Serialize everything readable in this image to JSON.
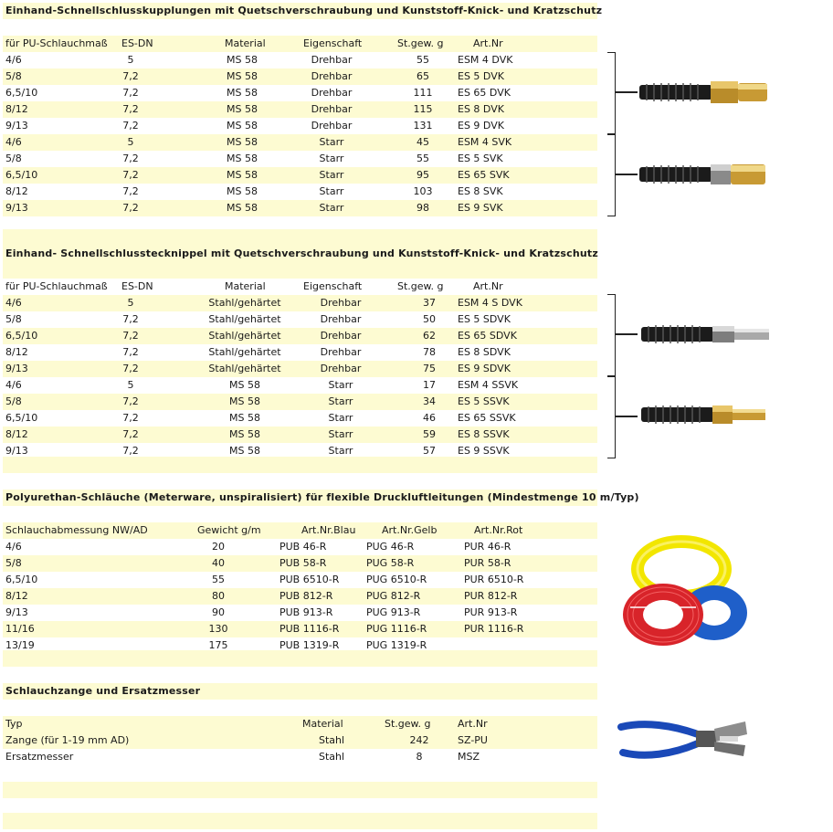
{
  "sections": [
    {
      "title": "Einhand-Schnellschlusskupplungen mit Quetschverschraubung und Kunststoff-Knick- und Kratzschutz",
      "headers": [
        "für PU-Schlauchmaß",
        "ES-DN",
        "Material",
        "Eigenschaft",
        "St.gew. g",
        "Art.Nr"
      ],
      "rows": [
        [
          "4/6",
          "5",
          "MS 58",
          "Drehbar",
          "55",
          "ESM 4 DVK"
        ],
        [
          "5/8",
          "7,2",
          "MS 58",
          "Drehbar",
          "65",
          "ES 5 DVK"
        ],
        [
          "6,5/10",
          "7,2",
          "MS 58",
          "Drehbar",
          "111",
          "ES 65 DVK"
        ],
        [
          "8/12",
          "7,2",
          "MS 58",
          "Drehbar",
          "115",
          "ES 8 DVK"
        ],
        [
          "9/13",
          "7,2",
          "MS 58",
          "Drehbar",
          "131",
          "ES 9 DVK"
        ],
        [
          "4/6",
          "5",
          "MS 58",
          "Starr",
          "45",
          "ESM 4 SVK"
        ],
        [
          "5/8",
          "7,2",
          "MS 58",
          "Starr",
          "55",
          "ES 5 SVK"
        ],
        [
          "6,5/10",
          "7,2",
          "MS 58",
          "Starr",
          "95",
          "ES 65 SVK"
        ],
        [
          "8/12",
          "7,2",
          "MS 58",
          "Starr",
          "103",
          "ES 8 SVK"
        ],
        [
          "9/13",
          "7,2",
          "MS 58",
          "Starr",
          "98",
          "ES 9 SVK"
        ]
      ]
    },
    {
      "title": "Einhand- Schnellschlusstecknippel mit Quetschverschraubung und Kunststoff-Knick- und Kratzschutz",
      "headers": [
        "für PU-Schlauchmaß",
        "ES-DN",
        "Material",
        "Eigenschaft",
        "St.gew. g",
        "Art.Nr"
      ],
      "rows": [
        [
          "4/6",
          "5",
          "Stahl/gehärtet",
          "Drehbar",
          "37",
          "ESM 4 S DVK"
        ],
        [
          "5/8",
          "7,2",
          "Stahl/gehärtet",
          "Drehbar",
          "50",
          "ES 5 SDVK"
        ],
        [
          "6,5/10",
          "7,2",
          "Stahl/gehärtet",
          "Drehbar",
          "62",
          "ES 65 SDVK"
        ],
        [
          "8/12",
          "7,2",
          "Stahl/gehärtet",
          "Drehbar",
          "78",
          "ES 8 SDVK"
        ],
        [
          "9/13",
          "7,2",
          "Stahl/gehärtet",
          "Drehbar",
          "75",
          "ES 9 SDVK"
        ],
        [
          "4/6",
          "5",
          "MS 58",
          "Starr",
          "17",
          "ESM 4 SSVK"
        ],
        [
          "5/8",
          "7,2",
          "MS 58",
          "Starr",
          "34",
          "ES 5 SSVK"
        ],
        [
          "6,5/10",
          "7,2",
          "MS 58",
          "Starr",
          "46",
          "ES 65 SSVK"
        ],
        [
          "8/12",
          "7,2",
          "MS 58",
          "Starr",
          "59",
          "ES 8 SSVK"
        ],
        [
          "9/13",
          "7,2",
          "MS 58",
          "Starr",
          "57",
          "ES 9 SSVK"
        ]
      ]
    },
    {
      "title": "Polyurethan-Schläuche (Meterware, unspiralisiert) für  flexible Druckluftleitungen (Mindestmenge 10 m/Typ)",
      "headers": [
        "Schlauchabmessung NW/AD",
        "Gewicht g/m",
        "Art.Nr.Blau",
        "Art.Nr.Gelb",
        "Art.Nr.Rot"
      ],
      "rows": [
        [
          "4/6",
          "20",
          "PUB 46-R",
          "PUG 46-R",
          "PUR 46-R"
        ],
        [
          "5/8",
          "40",
          "PUB 58-R",
          "PUG 58-R",
          "PUR 58-R"
        ],
        [
          "6,5/10",
          "55",
          "PUB 6510-R",
          "PUG 6510-R",
          "PUR 6510-R"
        ],
        [
          "8/12",
          "80",
          "PUB 812-R",
          "PUG 812-R",
          "PUR 812-R"
        ],
        [
          "9/13",
          "90",
          "PUB 913-R",
          "PUG 913-R",
          "PUR 913-R"
        ],
        [
          "11/16",
          "130",
          "PUB 1116-R",
          "PUG 1116-R",
          "PUR 1116-R"
        ],
        [
          "13/19",
          "175",
          "PUB 1319-R",
          "PUG 1319-R",
          ""
        ]
      ]
    },
    {
      "title": "Schlauchzange und Ersatzmesser",
      "headers": [
        "Typ",
        "Material",
        "St.gew. g",
        "Art.Nr"
      ],
      "rows": [
        [
          "Zange (für 1-19 mm AD)",
          "Stahl",
          "242",
          "SZ-PU"
        ],
        [
          "Ersatzmesser",
          "Stahl",
          "8",
          "MSZ"
        ]
      ]
    }
  ],
  "images": [
    "coupling-swivel",
    "coupling-rigid",
    "nipple-swivel",
    "nipple-rigid",
    "hose-coils",
    "hose-pliers"
  ]
}
